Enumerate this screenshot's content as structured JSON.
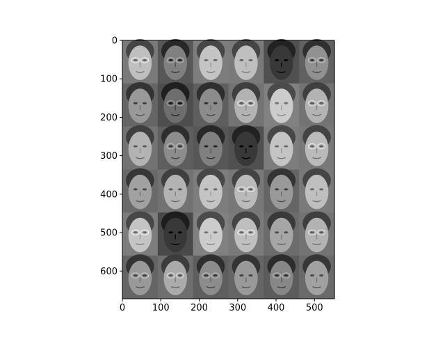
{
  "chart_data": {
    "type": "heatmap",
    "title": "",
    "xlabel": "",
    "ylabel": "",
    "x_ticks": [
      0,
      100,
      200,
      300,
      400,
      500
    ],
    "y_ticks": [
      0,
      100,
      200,
      300,
      400,
      500,
      600
    ],
    "xlim": [
      0,
      552
    ],
    "ylim": [
      672,
      0
    ],
    "colormap": "gray",
    "grid": false,
    "image_grid": {
      "rows": 6,
      "cols": 6,
      "tile_width": 92,
      "tile_height": 112
    },
    "tile_brightness": [
      [
        0.6,
        0.35,
        0.62,
        0.6,
        0.3,
        0.42
      ],
      [
        0.45,
        0.28,
        0.4,
        0.55,
        0.65,
        0.55
      ],
      [
        0.55,
        0.4,
        0.35,
        0.3,
        0.62,
        0.58
      ],
      [
        0.48,
        0.55,
        0.62,
        0.58,
        0.45,
        0.6
      ],
      [
        0.62,
        0.25,
        0.65,
        0.6,
        0.5,
        0.55
      ],
      [
        0.45,
        0.52,
        0.4,
        0.45,
        0.38,
        0.48
      ]
    ],
    "dark_skin_tiles": [
      [
        0,
        4
      ],
      [
        2,
        3
      ],
      [
        4,
        1
      ]
    ],
    "glasses_tiles": [
      [
        0,
        0
      ],
      [
        0,
        1
      ],
      [
        0,
        5
      ],
      [
        1,
        1
      ],
      [
        1,
        3
      ],
      [
        1,
        5
      ],
      [
        2,
        1
      ],
      [
        2,
        5
      ],
      [
        3,
        3
      ],
      [
        4,
        0
      ],
      [
        4,
        3
      ],
      [
        4,
        5
      ],
      [
        5,
        0
      ],
      [
        5,
        1
      ],
      [
        5,
        2
      ],
      [
        5,
        4
      ]
    ]
  }
}
